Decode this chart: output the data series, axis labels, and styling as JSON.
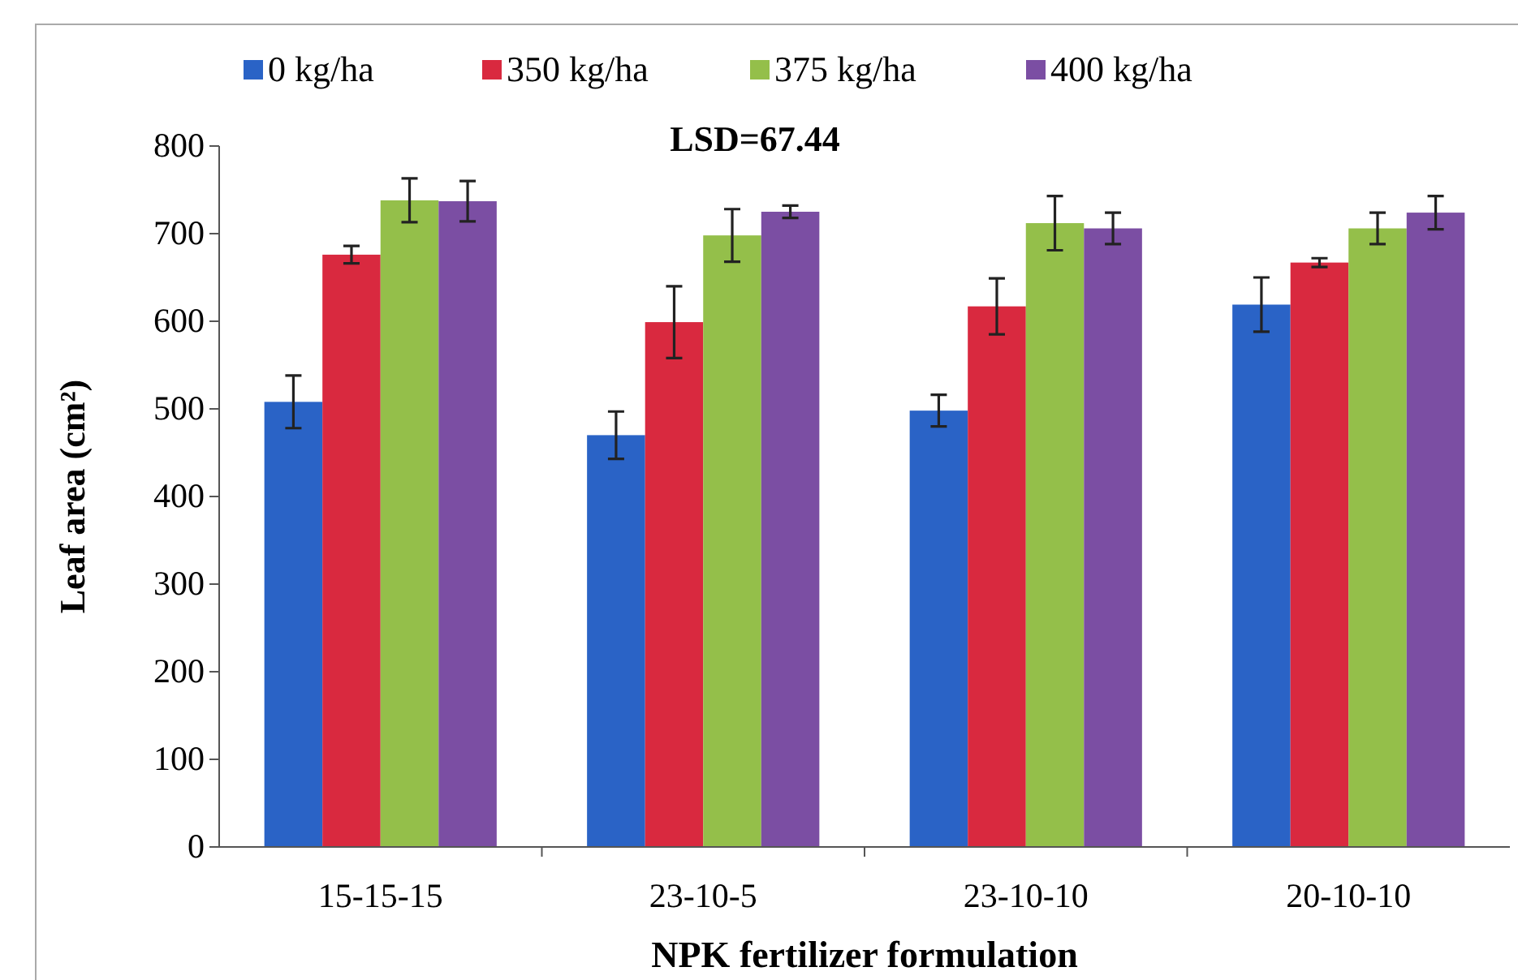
{
  "chart_data": {
    "type": "bar",
    "xlabel": "NPK fertilizer formulation",
    "ylabel": "Leaf area (cm²)",
    "annotations": [
      "LSD=67.44"
    ],
    "categories": [
      "15-15-15",
      "23-10-5",
      "23-10-10",
      "20-10-10"
    ],
    "series": [
      {
        "name": "0 kg/ha",
        "color": "#2a63c6",
        "values": [
          508,
          470,
          498,
          619
        ],
        "errors": [
          30,
          27,
          18,
          31
        ]
      },
      {
        "name": "350 kg/ha",
        "color": "#d9293f",
        "values": [
          676,
          599,
          617,
          667
        ],
        "errors": [
          10,
          41,
          32,
          5
        ]
      },
      {
        "name": "375 kg/ha",
        "color": "#94bf4a",
        "values": [
          738,
          698,
          712,
          706
        ],
        "errors": [
          25,
          30,
          31,
          18
        ]
      },
      {
        "name": "400 kg/ha",
        "color": "#7b4ea3",
        "values": [
          737,
          725,
          706,
          724
        ],
        "errors": [
          23,
          7,
          18,
          19
        ]
      }
    ],
    "ylim": [
      0,
      800
    ],
    "yticks": [
      0,
      100,
      200,
      300,
      400,
      500,
      600,
      700,
      800
    ],
    "legend": "top",
    "grid": false
  }
}
